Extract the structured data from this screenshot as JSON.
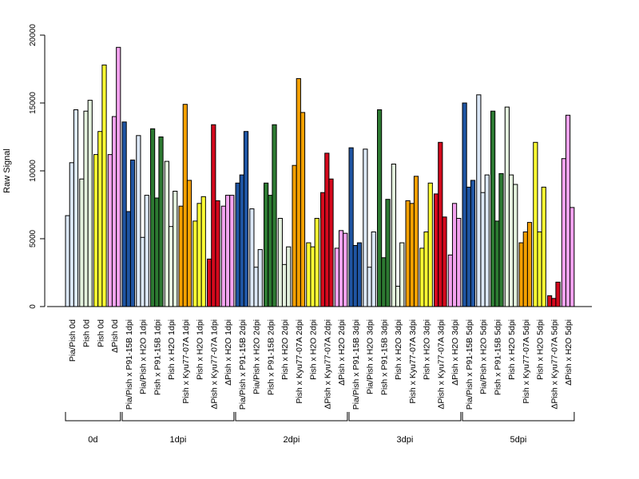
{
  "chart_data": {
    "type": "bar",
    "ylabel": "Raw Signal",
    "ylim": [
      0,
      20000
    ],
    "y_ticks": [
      0,
      5000,
      10000,
      15000,
      20000
    ],
    "grid": false,
    "legend": "none",
    "groups": [
      {
        "label": "0d",
        "categories": [
          {
            "name": "Pia/Pish 0d",
            "color": "#dce8f7",
            "values": [
              6700,
              10600,
              14500
            ]
          },
          {
            "name": "Pish 0d",
            "color": "#e4f2de",
            "values": [
              9400,
              14400,
              15200
            ]
          },
          {
            "name": "Pish 0d",
            "color": "#ffff33",
            "values": [
              11200,
              12900,
              17800
            ]
          },
          {
            "name": "ΔPish 0d",
            "color": "#f4a3f0",
            "values": [
              11200,
              14000,
              19100
            ]
          }
        ]
      },
      {
        "label": "1dpi",
        "categories": [
          {
            "name": "Pia/Pish x P91-15B 1dpi",
            "color": "#1f55a3",
            "values": [
              13600,
              7000,
              10800
            ]
          },
          {
            "name": "Pia/Pish x H2O 1dpi",
            "color": "#dce8f7",
            "values": [
              12600,
              5100,
              8200
            ]
          },
          {
            "name": "Pish x P91-15B 1dpi",
            "color": "#2d7a32",
            "values": [
              13100,
              8000,
              12500
            ]
          },
          {
            "name": "Pish x H2O 1dpi",
            "color": "#e4f2de",
            "values": [
              10700,
              5900,
              8500
            ]
          },
          {
            "name": "Pish x Kyu77-07A 1dpi",
            "color": "#f5a000",
            "values": [
              7400,
              14900,
              9300
            ]
          },
          {
            "name": "Pish x H2O 1dpi",
            "color": "#ffff33",
            "values": [
              6300,
              7600,
              8100
            ]
          },
          {
            "name": "ΔPish x Kyu77-07A 1dpi",
            "color": "#d5091d",
            "values": [
              3500,
              13400,
              7800
            ]
          },
          {
            "name": "ΔPish x H2O 1dpi",
            "color": "#f4a3f0",
            "values": [
              7400,
              8200,
              8200
            ]
          }
        ]
      },
      {
        "label": "2dpi",
        "categories": [
          {
            "name": "Pia/Pish x P91-15B 2dpi",
            "color": "#1f55a3",
            "values": [
              9100,
              9700,
              12900
            ]
          },
          {
            "name": "Pia/Pish x H2O 2dpi",
            "color": "#dce8f7",
            "values": [
              7200,
              2900,
              4200
            ]
          },
          {
            "name": "Pish x P91-15B 2dpi",
            "color": "#2d7a32",
            "values": [
              9100,
              8200,
              13400
            ]
          },
          {
            "name": "Pish x H2O 2dpi",
            "color": "#e4f2de",
            "values": [
              6500,
              3100,
              4400
            ]
          },
          {
            "name": "Pish x Kyu77-07A 2dpi",
            "color": "#f5a000",
            "values": [
              10400,
              16800,
              14300
            ]
          },
          {
            "name": "Pish x H2O 2dpi",
            "color": "#ffff33",
            "values": [
              4700,
              4400,
              6500
            ]
          },
          {
            "name": "ΔPish x Kyu77-07A 2dpi",
            "color": "#d5091d",
            "values": [
              8400,
              11300,
              9400
            ]
          },
          {
            "name": "ΔPish x H2O 2dpi",
            "color": "#f4a3f0",
            "values": [
              4300,
              5600,
              5400
            ]
          }
        ]
      },
      {
        "label": "3dpi",
        "categories": [
          {
            "name": "Pia/Pish x P91-15B 3dpi",
            "color": "#1f55a3",
            "values": [
              11700,
              4500,
              4700
            ]
          },
          {
            "name": "Pia/Pish x H2O 3dpi",
            "color": "#dce8f7",
            "values": [
              11600,
              2900,
              5500
            ]
          },
          {
            "name": "Pish x P91-15B 3dpi",
            "color": "#2d7a32",
            "values": [
              14500,
              3600,
              7900
            ]
          },
          {
            "name": "Pish x H2O 3dpi",
            "color": "#e4f2de",
            "values": [
              10500,
              1500,
              4700
            ]
          },
          {
            "name": "Pish x Kyu77-07A 3dpi",
            "color": "#f5a000",
            "values": [
              7800,
              7600,
              9600
            ]
          },
          {
            "name": "Pish x H2O 3dpi",
            "color": "#ffff33",
            "values": [
              4300,
              5500,
              9100
            ]
          },
          {
            "name": "ΔPish x Kyu77-07A 3dpi",
            "color": "#d5091d",
            "values": [
              8300,
              12100,
              6600
            ]
          },
          {
            "name": "ΔPish x H2O 3dpi",
            "color": "#f4a3f0",
            "values": [
              3800,
              7600,
              6500
            ]
          }
        ]
      },
      {
        "label": "5dpi",
        "categories": [
          {
            "name": "Pia/Pish x P91-15B 5dpi",
            "color": "#1f55a3",
            "values": [
              15000,
              8800,
              9300
            ]
          },
          {
            "name": "Pia/Pish x H2O 5dpi",
            "color": "#dce8f7",
            "values": [
              15600,
              8400,
              9700
            ]
          },
          {
            "name": "Pish x P91-15B 5dpi",
            "color": "#2d7a32",
            "values": [
              14400,
              6300,
              9800
            ]
          },
          {
            "name": "Pish x H2O 5dpi",
            "color": "#e4f2de",
            "values": [
              14700,
              9700,
              9000
            ]
          },
          {
            "name": "Pish x Kyu77-07A 5dpi",
            "color": "#f5a000",
            "values": [
              4700,
              5500,
              6200
            ]
          },
          {
            "name": "Pish x H2O 5dpi",
            "color": "#ffff33",
            "values": [
              12100,
              5500,
              8800
            ]
          },
          {
            "name": "ΔPish x Kyu77-07A 5dpi",
            "color": "#d5091d",
            "values": [
              800,
              600,
              1800
            ]
          },
          {
            "name": "ΔPish x H2O 5dpi",
            "color": "#f4a3f0",
            "values": [
              10900,
              14100,
              7300
            ]
          }
        ]
      }
    ]
  }
}
